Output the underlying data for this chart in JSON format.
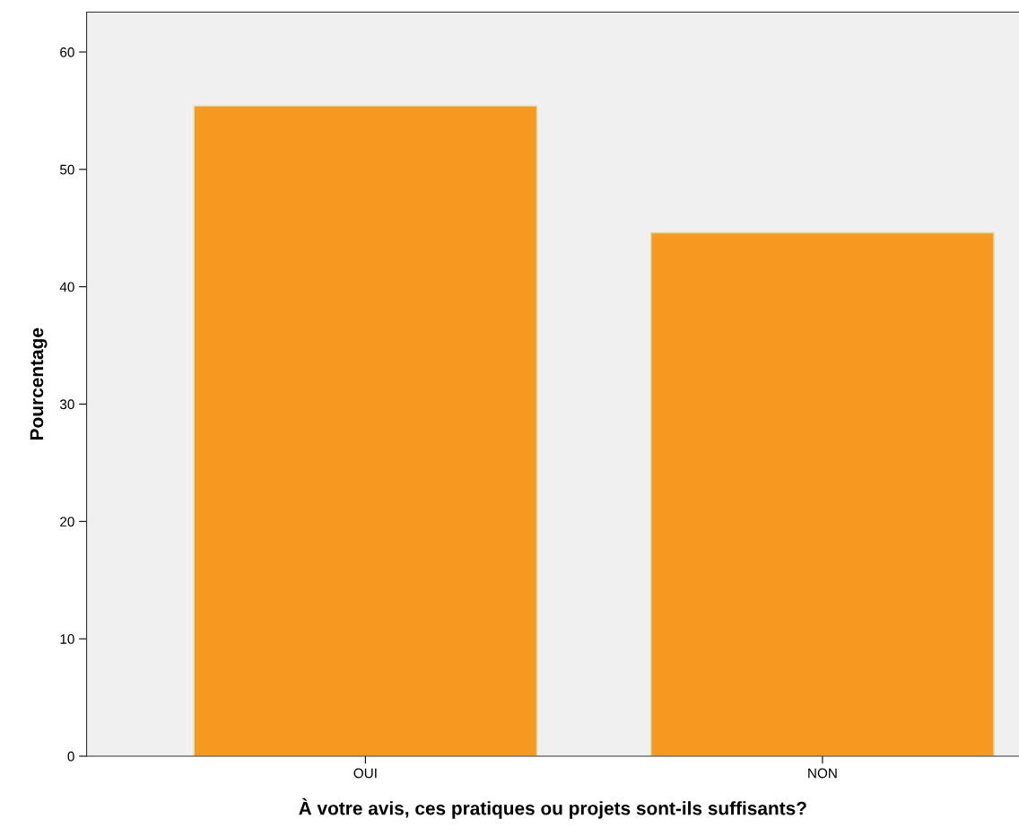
{
  "chart_data": {
    "type": "bar",
    "xlabel": "À votre avis, ces pratiques ou projets sont-ils suffisants?",
    "ylabel": "Pourcentage",
    "categories": [
      "OUI",
      "NON"
    ],
    "values": [
      55.4,
      44.6
    ],
    "color": "#f7991f",
    "ylim": [
      0,
      63.4
    ],
    "yticks": [
      0,
      10,
      20,
      30,
      40,
      50,
      60
    ],
    "grid": false
  }
}
